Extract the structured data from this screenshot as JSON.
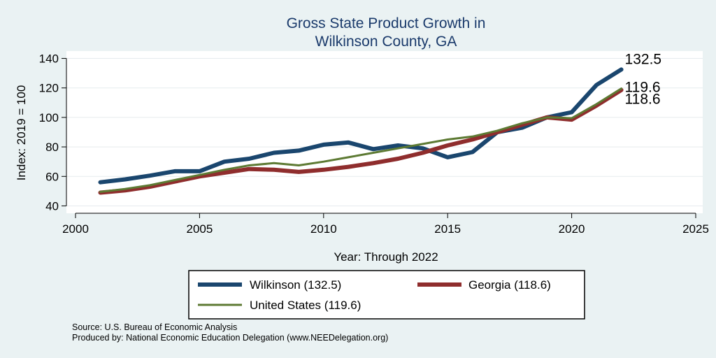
{
  "chart_data": {
    "type": "line",
    "title_lines": [
      "Gross State Product Growth in",
      "Wilkinson County, GA"
    ],
    "xlabel": "Year: Through 2022",
    "ylabel": "Index: 2019 = 100",
    "xlim": [
      2000,
      2025
    ],
    "ylim": [
      35,
      145
    ],
    "xticks": [
      2000,
      2005,
      2010,
      2015,
      2020,
      2025
    ],
    "yticks": [
      40,
      60,
      80,
      100,
      120,
      140
    ],
    "grid": true,
    "legend_position": "bottom",
    "x": [
      2001,
      2002,
      2003,
      2004,
      2005,
      2006,
      2007,
      2008,
      2009,
      2010,
      2011,
      2012,
      2013,
      2014,
      2015,
      2016,
      2017,
      2018,
      2019,
      2020,
      2021,
      2022
    ],
    "series": [
      {
        "name": "Wilkinson",
        "legend": "Wilkinson  (132.5)",
        "end_label": "132.5",
        "color": "#1a466e",
        "values": [
          56,
          58,
          60.5,
          63.5,
          63.5,
          70,
          72,
          76,
          77.5,
          81.5,
          83,
          78.5,
          81,
          79,
          73,
          76.5,
          90,
          93,
          100,
          103.5,
          122,
          132.5
        ]
      },
      {
        "name": "Georgia",
        "legend": "Georgia (118.6)",
        "end_label": "118.6",
        "color": "#8f2d2d",
        "values": [
          49,
          50.5,
          53,
          56.5,
          60,
          62.5,
          65,
          64.5,
          63,
          64.5,
          66.5,
          69,
          72,
          76,
          81,
          85,
          90,
          95,
          100,
          98.5,
          108,
          118.6
        ]
      },
      {
        "name": "United States",
        "legend": "United States (119.6)",
        "end_label": "119.6",
        "color": "#5d7a33",
        "values": [
          49.5,
          51.5,
          54,
          57.5,
          61,
          64.5,
          67.5,
          69,
          67.5,
          70,
          73,
          76,
          79,
          82,
          85,
          87,
          91,
          96,
          100,
          99.5,
          109,
          119.6
        ]
      }
    ]
  },
  "notes": {
    "source": "Source: U.S. Bureau of Economic Analysis",
    "produced_by": "Produced by: National Economic Education Delegation (www.NEEDelegation.org)"
  }
}
